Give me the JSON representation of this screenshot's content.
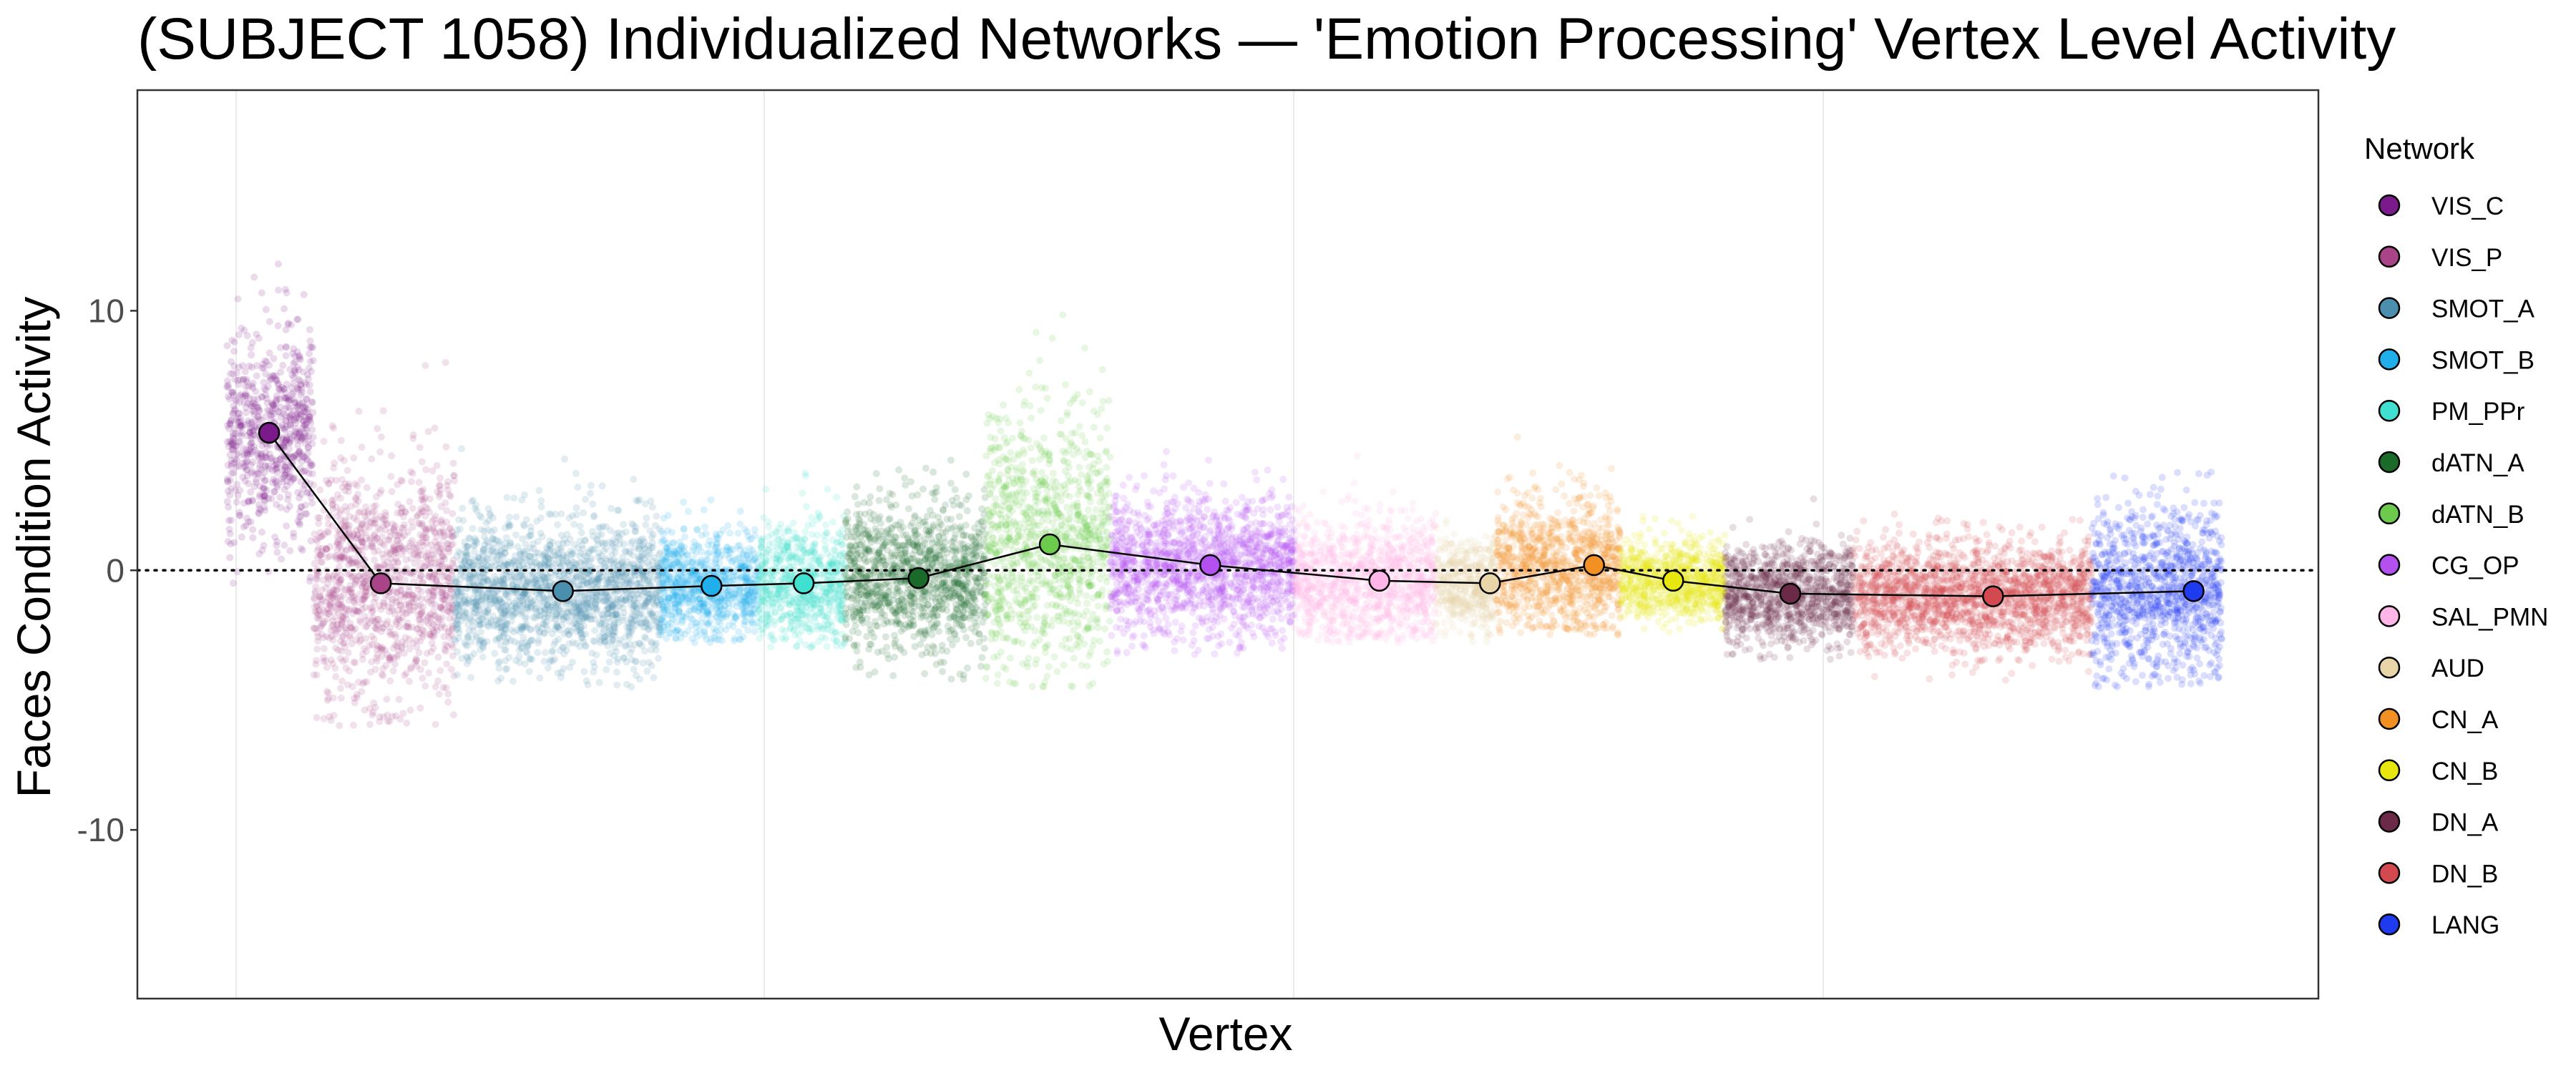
{
  "chart_data": {
    "type": "scatter",
    "title": "(SUBJECT 1058) Individualized Networks — 'Emotion Processing' Vertex Level Activity",
    "xlabel": "Vertex",
    "ylabel": "Faces Condition Activity",
    "ylim": [
      -16.5,
      18.5
    ],
    "y_ticks": [
      -10,
      0,
      10
    ],
    "y_tick_labels": [
      "-10",
      "0",
      "10"
    ],
    "reference_line": {
      "y": 0,
      "style": "dotted"
    },
    "grid": true,
    "legend": {
      "title": "Network",
      "position": "right"
    },
    "x_range": [
      0,
      2380
    ],
    "x_gridlines": [
      100,
      600,
      1100,
      1600
    ],
    "networks": [
      {
        "name": "VIS_C",
        "color": "#7B1A8A",
        "x_start": 0,
        "x_end": 80,
        "mean": 5.3,
        "mean_x": 39,
        "spread": [
          -1.0,
          12.0
        ]
      },
      {
        "name": "VIS_P",
        "color": "#AA4488",
        "x_start": 80,
        "x_end": 210,
        "mean": -0.5,
        "mean_x": 142,
        "spread": [
          -6.0,
          8.5
        ]
      },
      {
        "name": "SMOT_A",
        "color": "#4B8FAE",
        "x_start": 210,
        "x_end": 400,
        "mean": -0.8,
        "mean_x": 310,
        "spread": [
          -4.5,
          4.8
        ]
      },
      {
        "name": "SMOT_B",
        "color": "#21AFEC",
        "x_start": 400,
        "x_end": 490,
        "mean": -0.6,
        "mean_x": 447,
        "spread": [
          -2.8,
          3.8
        ]
      },
      {
        "name": "PM_PPr",
        "color": "#40E0D0",
        "x_start": 490,
        "x_end": 570,
        "mean": -0.5,
        "mean_x": 532,
        "spread": [
          -3.0,
          5.0
        ]
      },
      {
        "name": "dATN_A",
        "color": "#1A6B2A",
        "x_start": 570,
        "x_end": 700,
        "mean": -0.3,
        "mean_x": 638,
        "spread": [
          -4.3,
          5.0
        ]
      },
      {
        "name": "dATN_B",
        "color": "#6CCB4C",
        "x_start": 700,
        "x_end": 815,
        "mean": 1.0,
        "mean_x": 759,
        "spread": [
          -4.5,
          12.0
        ]
      },
      {
        "name": "CG_OP",
        "color": "#B44FF0",
        "x_start": 815,
        "x_end": 985,
        "mean": 0.2,
        "mean_x": 907,
        "spread": [
          -3.3,
          5.2
        ]
      },
      {
        "name": "SAL_PMN",
        "color": "#FFB5E8",
        "x_start": 985,
        "x_end": 1115,
        "mean": -0.4,
        "mean_x": 1063,
        "spread": [
          -2.8,
          5.0
        ]
      },
      {
        "name": "AUD",
        "color": "#E8D5A8",
        "x_start": 1115,
        "x_end": 1170,
        "mean": -0.5,
        "mean_x": 1165,
        "spread": [
          -2.8,
          2.8
        ]
      },
      {
        "name": "CN_A",
        "color": "#F39023",
        "x_start": 1170,
        "x_end": 1285,
        "mean": 0.2,
        "mean_x": 1261,
        "spread": [
          -2.5,
          5.8
        ]
      },
      {
        "name": "CN_B",
        "color": "#E7E70F",
        "x_start": 1285,
        "x_end": 1382,
        "mean": -0.4,
        "mean_x": 1334,
        "spread": [
          -2.8,
          2.2
        ]
      },
      {
        "name": "DN_A",
        "color": "#6A2A48",
        "x_start": 1382,
        "x_end": 1500,
        "mean": -0.9,
        "mean_x": 1442,
        "spread": [
          -3.5,
          2.8
        ]
      },
      {
        "name": "DN_B",
        "color": "#D24A4F",
        "x_start": 1500,
        "x_end": 1720,
        "mean": -1.0,
        "mean_x": 1629,
        "spread": [
          -4.5,
          2.2
        ]
      },
      {
        "name": "LANG",
        "color": "#1E3BF0",
        "x_start": 1720,
        "x_end": 1840,
        "mean": -0.8,
        "mean_x": 1814,
        "spread": [
          -4.5,
          6.0
        ]
      }
    ]
  }
}
